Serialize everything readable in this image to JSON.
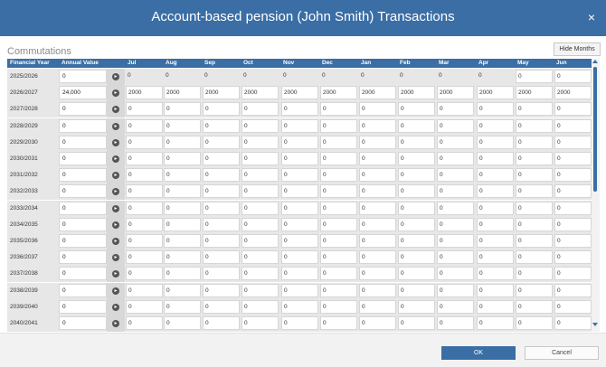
{
  "window": {
    "title": "Account-based pension (John Smith) Transactions",
    "close_glyph": "×"
  },
  "section": {
    "title": "Commutations",
    "hide_months_label": "Hide Months"
  },
  "table": {
    "headers": [
      "Financial Year",
      "Annual Value",
      "",
      "Jul",
      "Aug",
      "Sep",
      "Oct",
      "Nov",
      "Dec",
      "Jan",
      "Feb",
      "Mar",
      "Apr",
      "May",
      "Jun"
    ],
    "rows": [
      {
        "year": "2025/2026",
        "annual": "0",
        "months": [
          "0",
          "0",
          "0",
          "0",
          "0",
          "0",
          "0",
          "0",
          "0",
          "0",
          "0",
          "0"
        ],
        "editable_from": 10
      },
      {
        "year": "2026/2027",
        "annual": "24,000",
        "months": [
          "2000",
          "2000",
          "2000",
          "2000",
          "2000",
          "2000",
          "2000",
          "2000",
          "2000",
          "2000",
          "2000",
          "2000"
        ],
        "editable_from": 0
      },
      {
        "year": "2027/2028",
        "annual": "0",
        "months": [
          "0",
          "0",
          "0",
          "0",
          "0",
          "0",
          "0",
          "0",
          "0",
          "0",
          "0",
          "0"
        ],
        "editable_from": 0
      },
      {
        "year": "2028/2029",
        "annual": "0",
        "months": [
          "0",
          "0",
          "0",
          "0",
          "0",
          "0",
          "0",
          "0",
          "0",
          "0",
          "0",
          "0"
        ],
        "editable_from": 0
      },
      {
        "year": "2029/2030",
        "annual": "0",
        "months": [
          "0",
          "0",
          "0",
          "0",
          "0",
          "0",
          "0",
          "0",
          "0",
          "0",
          "0",
          "0"
        ],
        "editable_from": 0
      },
      {
        "year": "2030/2031",
        "annual": "0",
        "months": [
          "0",
          "0",
          "0",
          "0",
          "0",
          "0",
          "0",
          "0",
          "0",
          "0",
          "0",
          "0"
        ],
        "editable_from": 0
      },
      {
        "year": "2031/2032",
        "annual": "0",
        "months": [
          "0",
          "0",
          "0",
          "0",
          "0",
          "0",
          "0",
          "0",
          "0",
          "0",
          "0",
          "0"
        ],
        "editable_from": 0
      },
      {
        "year": "2032/2033",
        "annual": "0",
        "months": [
          "0",
          "0",
          "0",
          "0",
          "0",
          "0",
          "0",
          "0",
          "0",
          "0",
          "0",
          "0"
        ],
        "editable_from": 0
      },
      {
        "year": "2033/2034",
        "annual": "0",
        "months": [
          "0",
          "0",
          "0",
          "0",
          "0",
          "0",
          "0",
          "0",
          "0",
          "0",
          "0",
          "0"
        ],
        "editable_from": 0
      },
      {
        "year": "2034/2035",
        "annual": "0",
        "months": [
          "0",
          "0",
          "0",
          "0",
          "0",
          "0",
          "0",
          "0",
          "0",
          "0",
          "0",
          "0"
        ],
        "editable_from": 0
      },
      {
        "year": "2035/2036",
        "annual": "0",
        "months": [
          "0",
          "0",
          "0",
          "0",
          "0",
          "0",
          "0",
          "0",
          "0",
          "0",
          "0",
          "0"
        ],
        "editable_from": 0
      },
      {
        "year": "2036/2037",
        "annual": "0",
        "months": [
          "0",
          "0",
          "0",
          "0",
          "0",
          "0",
          "0",
          "0",
          "0",
          "0",
          "0",
          "0"
        ],
        "editable_from": 0
      },
      {
        "year": "2037/2038",
        "annual": "0",
        "months": [
          "0",
          "0",
          "0",
          "0",
          "0",
          "0",
          "0",
          "0",
          "0",
          "0",
          "0",
          "0"
        ],
        "editable_from": 0
      },
      {
        "year": "2038/2039",
        "annual": "0",
        "months": [
          "0",
          "0",
          "0",
          "0",
          "0",
          "0",
          "0",
          "0",
          "0",
          "0",
          "0",
          "0"
        ],
        "editable_from": 0
      },
      {
        "year": "2039/2040",
        "annual": "0",
        "months": [
          "0",
          "0",
          "0",
          "0",
          "0",
          "0",
          "0",
          "0",
          "0",
          "0",
          "0",
          "0"
        ],
        "editable_from": 0
      },
      {
        "year": "2040/2041",
        "annual": "0",
        "months": [
          "0",
          "0",
          "0",
          "0",
          "0",
          "0",
          "0",
          "0",
          "0",
          "0",
          "0",
          "0"
        ],
        "editable_from": 0
      }
    ]
  },
  "icons": {
    "calculate": "calculate-icon"
  },
  "colors": {
    "accent": "#3a6ea5",
    "row_background": "#e7e7e7"
  },
  "footer": {
    "ok_label": "OK",
    "cancel_label": "Cancel"
  }
}
